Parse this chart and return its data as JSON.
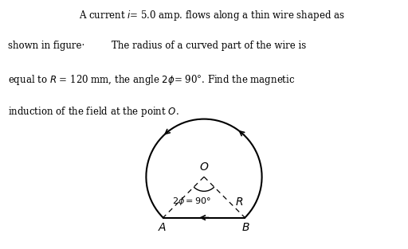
{
  "bg_color": "#ffffff",
  "fig_width": 5.12,
  "fig_height": 3.13,
  "dpi": 100,
  "R": 1.0,
  "phi_deg": 45,
  "text_lines": [
    "A current $i$= 5.0 amp. flows along a thin wire shaped as",
    "shown in figure·         The radius of a curved part of the wire is",
    "equal to $R$ = 120 mm, the angle $2\\phi$= 90°. Find the magnetic",
    "induction of the field at the point $O$."
  ],
  "text_indent": [
    true,
    false,
    false,
    false
  ],
  "fontsize_text": 8.5,
  "arrow_angles": [
    50,
    130
  ],
  "label_O": "$O$",
  "label_A": "$A$",
  "label_B": "$B$",
  "label_2phi": "$2\\phi = 90°$",
  "label_R": "$R$"
}
